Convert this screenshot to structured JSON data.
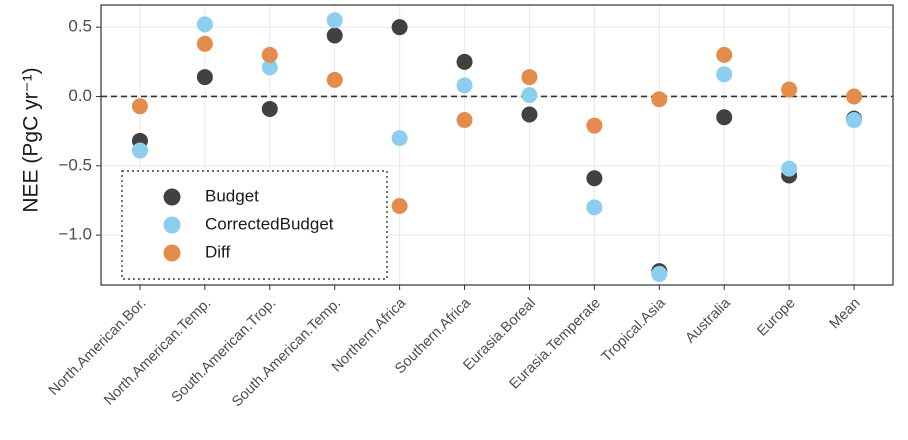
{
  "chart_data": {
    "type": "dot",
    "y_label": "NEE (PgC yr⁻¹)",
    "categories": [
      "North.American.Bor.",
      "North.American.Temp.",
      "South.American.Trop.",
      "South.American.Temp.",
      "Northern.Africa",
      "Southern.Africa",
      "Eurasia.Boreal",
      "Eurasia.Temperate",
      "Tropical.Asia",
      "Australia",
      "Europe",
      "Mean"
    ],
    "series": [
      {
        "name": "Budget",
        "color": "#414141",
        "values": [
          -0.32,
          0.14,
          -0.09,
          0.44,
          0.5,
          0.25,
          -0.13,
          -0.59,
          -1.26,
          -0.15,
          -0.57,
          -0.16
        ]
      },
      {
        "name": "CorrectedBudget",
        "color": "#8dcdf0",
        "values": [
          -0.39,
          0.52,
          0.21,
          0.55,
          -0.3,
          0.08,
          0.01,
          -0.8,
          -1.28,
          0.16,
          -0.52,
          -0.17
        ]
      },
      {
        "name": "Diff",
        "color": "#e48c4c",
        "values": [
          -0.07,
          0.38,
          0.3,
          0.12,
          -0.79,
          -0.17,
          0.14,
          -0.21,
          -0.02,
          0.3,
          0.05,
          0.0
        ]
      }
    ],
    "ylim": [
      -1.36,
      0.66
    ],
    "yticks": [
      {
        "value": -1,
        "label": "−1.0"
      },
      {
        "value": -0.5,
        "label": "−0.5"
      },
      {
        "value": 0,
        "label": "0.0"
      },
      0.5
    ],
    "hline": 0,
    "grid": true,
    "legend": "bottom-left"
  }
}
